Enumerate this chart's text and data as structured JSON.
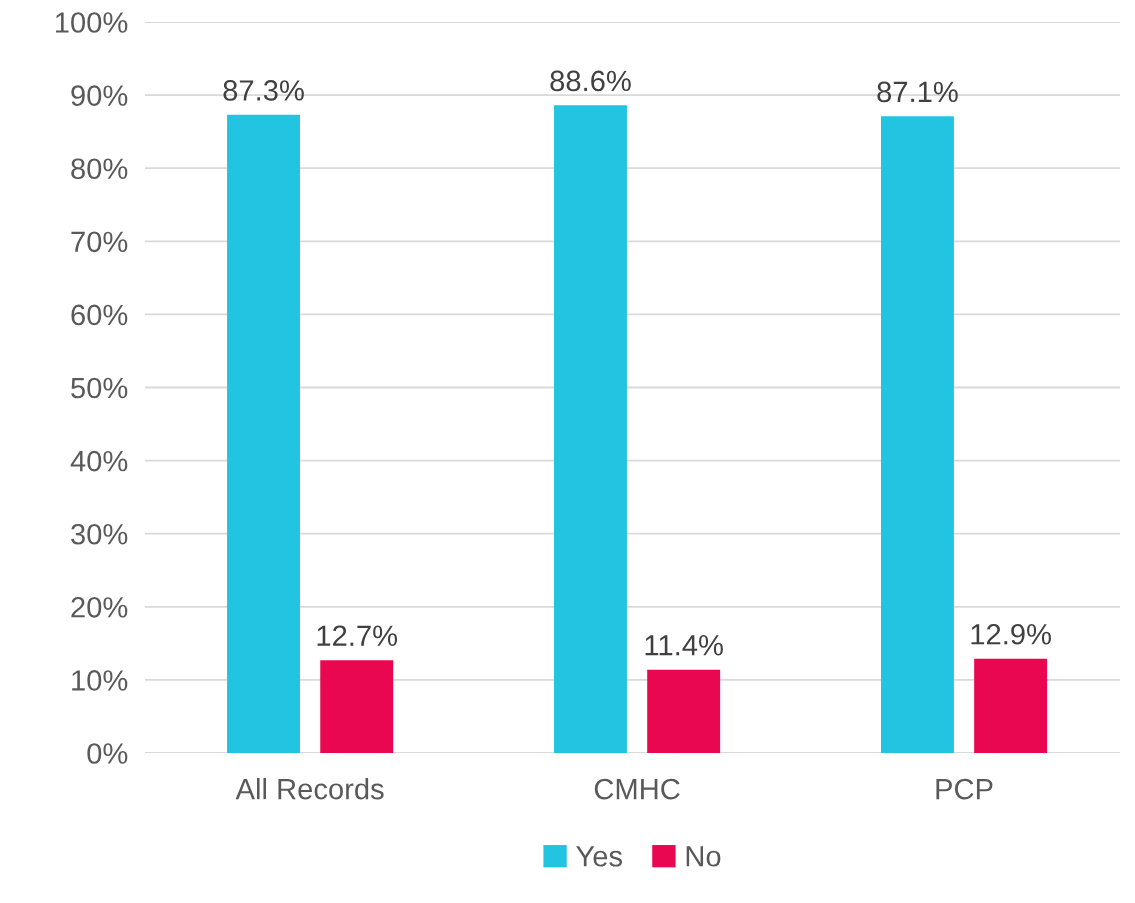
{
  "chart_data": {
    "type": "bar",
    "categories": [
      "All Records",
      "CMHC",
      "PCP"
    ],
    "series": [
      {
        "name": "Yes",
        "color": "#22c4e1",
        "values": [
          87.3,
          88.6,
          87.1
        ],
        "value_labels": [
          "87.3%",
          "88.6%",
          "87.1%"
        ]
      },
      {
        "name": "No",
        "color": "#e80750",
        "values": [
          12.7,
          11.4,
          12.9
        ],
        "value_labels": [
          "12.7%",
          "11.4%",
          "12.9%"
        ]
      }
    ],
    "ylim": [
      0,
      100
    ],
    "yticks": [
      {
        "value": 0,
        "label": "0%"
      },
      {
        "value": 10,
        "label": "10%"
      },
      {
        "value": 20,
        "label": "20%"
      },
      {
        "value": 30,
        "label": "30%"
      },
      {
        "value": 40,
        "label": "40%"
      },
      {
        "value": 50,
        "label": "50%"
      },
      {
        "value": 60,
        "label": "60%"
      },
      {
        "value": 70,
        "label": "70%"
      },
      {
        "value": 80,
        "label": "80%"
      },
      {
        "value": 90,
        "label": "90%"
      },
      {
        "value": 100,
        "label": "100%"
      }
    ],
    "grid": "y",
    "legend": "bottom"
  }
}
